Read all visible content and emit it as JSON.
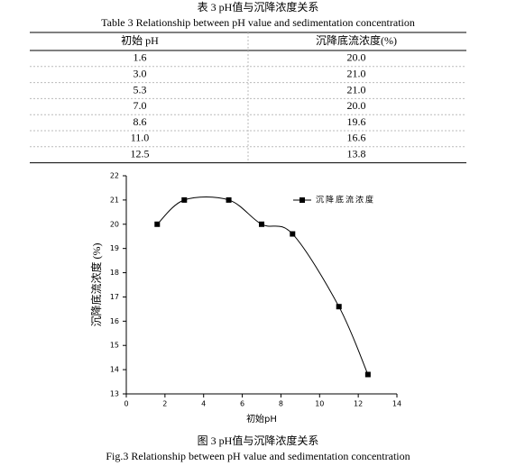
{
  "table": {
    "title_cn": "表 3 pH值与沉降浓度关系",
    "title_en": "Table 3 Relationship between pH value and sedimentation concentration",
    "header": [
      "初始 pH",
      "沉降底流浓度(%)"
    ],
    "rows": [
      [
        "1.6",
        "20.0"
      ],
      [
        "3.0",
        "21.0"
      ],
      [
        "5.3",
        "21.0"
      ],
      [
        "7.0",
        "20.0"
      ],
      [
        "8.6",
        "19.6"
      ],
      [
        "11.0",
        "16.6"
      ],
      [
        "12.5",
        "13.8"
      ]
    ]
  },
  "chart_data": {
    "type": "line",
    "x_label": "初始pH",
    "y_label": "沉降底流浓度 (%)",
    "x": [
      1.6,
      3.0,
      5.3,
      7.0,
      8.6,
      11.0,
      12.5
    ],
    "series": [
      {
        "name": "沉降底流浓度",
        "color": "#000000",
        "values": [
          20,
          21,
          21,
          20,
          19.6,
          16.6,
          13.8
        ]
      }
    ],
    "xlim": [
      0,
      14
    ],
    "xticks": [
      0,
      2,
      4,
      6,
      8,
      10,
      12,
      14
    ],
    "ylim": [
      13,
      22
    ],
    "yticks": [
      13,
      14,
      15,
      16,
      17,
      18,
      19,
      20,
      21,
      22
    ],
    "legend": "upper right",
    "smooth": true
  },
  "figure": {
    "caption_cn": "图 3 pH值与沉降浓度关系",
    "caption_en": "Fig.3 Relationship between pH value and sedimentation concentration"
  }
}
